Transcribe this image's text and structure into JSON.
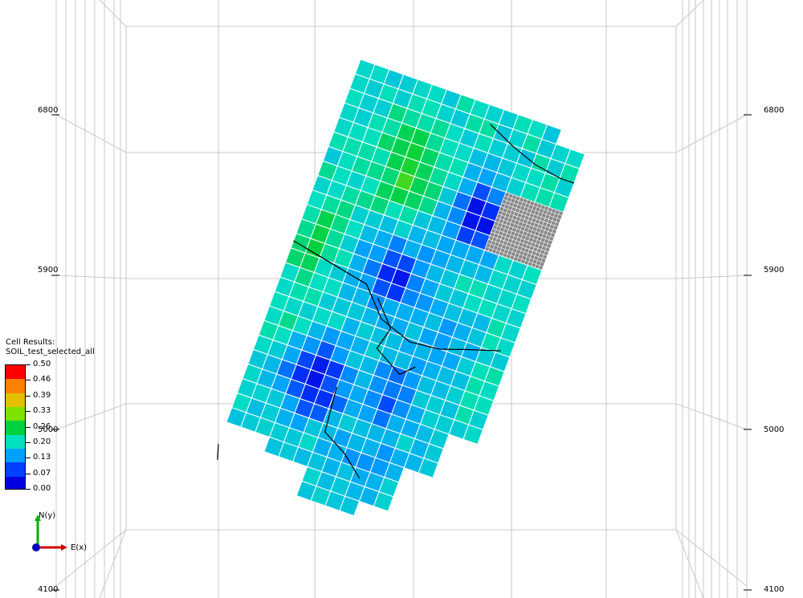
{
  "viewport": {
    "background": "#ffffff",
    "axis_ticks": {
      "left": [
        "6800",
        "5900",
        "5000",
        "4100"
      ],
      "right": [
        "6800",
        "5900",
        "5000",
        "4100"
      ]
    },
    "grid_color": "#c8c8c8",
    "cell_border_color": "#ffffff",
    "fault_color": "#000000",
    "inactive_cell_color": "#888888"
  },
  "legend": {
    "title_line1": "Cell Results:",
    "title_line2": "SOIL_test_selected_all",
    "values": [
      "0.50",
      "0.46",
      "0.39",
      "0.33",
      "0.26",
      "0.20",
      "0.13",
      "0.07",
      "0.00"
    ],
    "colors_top_to_bottom": [
      "#ff0000",
      "#ff8000",
      "#e0c000",
      "#80e000",
      "#00d040",
      "#00e0c0",
      "#00a0ff",
      "#0040ff",
      "#0000e0"
    ]
  },
  "axis_triad": {
    "y_label": "N(y)",
    "x_label": "E(x)",
    "y_color": "#00b000",
    "x_color": "#d00000",
    "origin_color": "#0000c0"
  }
}
